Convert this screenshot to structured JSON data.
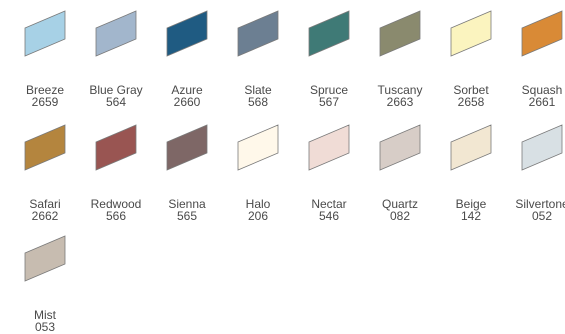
{
  "swatches": [
    {
      "name": "Breeze",
      "code": "2659",
      "color": "#a7d1e6"
    },
    {
      "name": "Blue Gray",
      "code": "564",
      "color": "#a2b6cc"
    },
    {
      "name": "Azure",
      "code": "2660",
      "color": "#1f5b82"
    },
    {
      "name": "Slate",
      "code": "568",
      "color": "#6c7f92"
    },
    {
      "name": "Spruce",
      "code": "567",
      "color": "#3f7a76"
    },
    {
      "name": "Tuscany",
      "code": "2663",
      "color": "#8a8a6e"
    },
    {
      "name": "Sorbet",
      "code": "2658",
      "color": "#fbf4bf"
    },
    {
      "name": "Squash",
      "code": "2661",
      "color": "#d98a36"
    },
    {
      "name": "Safari",
      "code": "2662",
      "color": "#b4853e"
    },
    {
      "name": "Redwood",
      "code": "566",
      "color": "#995552"
    },
    {
      "name": "Sienna",
      "code": "565",
      "color": "#7e6766"
    },
    {
      "name": "Halo",
      "code": "206",
      "color": "#fff8ea"
    },
    {
      "name": "Nectar",
      "code": "546",
      "color": "#f0dcd6"
    },
    {
      "name": "Quartz",
      "code": "082",
      "color": "#d7cdc7"
    },
    {
      "name": "Beige",
      "code": "142",
      "color": "#f2e7d2"
    },
    {
      "name": "Silvertone",
      "code": "052",
      "color": "#d8e0e4"
    },
    {
      "name": "Mist",
      "code": "053",
      "color": "#c7bcb0"
    }
  ]
}
